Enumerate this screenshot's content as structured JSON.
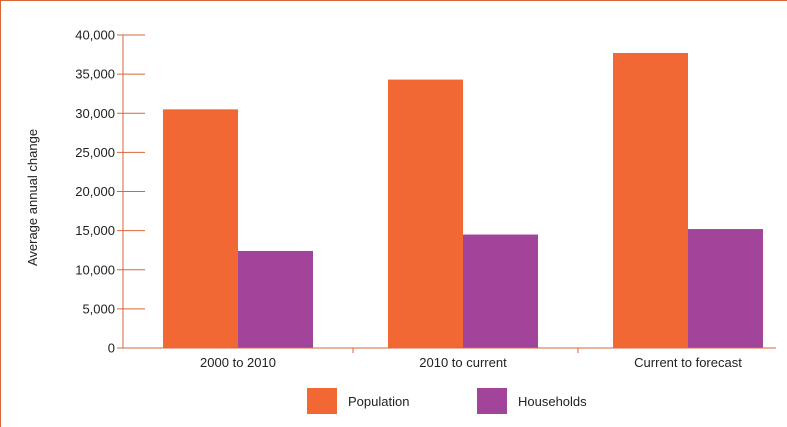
{
  "chart_data": {
    "type": "bar",
    "title": "",
    "xlabel": "",
    "ylabel": "Average annual change",
    "categories": [
      "2000 to 2010",
      "2010 to current",
      "Current to forecast"
    ],
    "series": [
      {
        "name": "Population",
        "values": [
          30500,
          34300,
          37700
        ],
        "color": "#f26835"
      },
      {
        "name": "Households",
        "values": [
          12400,
          14500,
          15200
        ],
        "color": "#a3449b"
      }
    ],
    "ylim": [
      0,
      40000
    ],
    "yticks": [
      0,
      5000,
      10000,
      15000,
      20000,
      25000,
      30000,
      35000,
      40000
    ],
    "ytick_labels": [
      "0",
      "5,000",
      "10,000",
      "15,000",
      "20,000",
      "25,000",
      "30,000",
      "35,000",
      "40,000"
    ],
    "grid": false,
    "legend_position": "bottom-center"
  }
}
